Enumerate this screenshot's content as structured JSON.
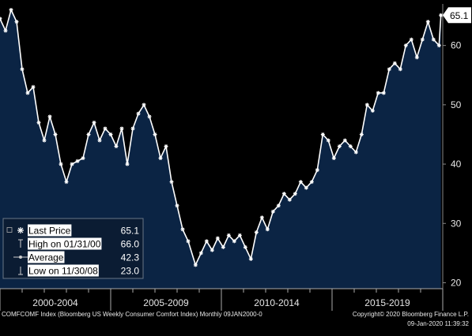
{
  "chart_data": {
    "type": "area",
    "y_axis": {
      "ticks": [
        20,
        30,
        40,
        50,
        60
      ],
      "range": [
        19,
        67
      ],
      "side": "right"
    },
    "x_axis": {
      "period_labels": [
        "2000-2004",
        "2005-2009",
        "2010-2014",
        "2015-2019"
      ],
      "range": [
        "2000-01",
        "2020-01"
      ]
    },
    "grid": false,
    "last_value_label": "65.1",
    "series": [
      {
        "values": [
          {
            "x": "2000-01",
            "y": 64.5
          },
          {
            "x": "2000-04",
            "y": 62.5
          },
          {
            "x": "2000-07",
            "y": 66.0
          },
          {
            "x": "2000-10",
            "y": 64.0
          },
          {
            "x": "2001-01",
            "y": 56.0
          },
          {
            "x": "2001-04",
            "y": 52.0
          },
          {
            "x": "2001-07",
            "y": 53.0
          },
          {
            "x": "2001-10",
            "y": 47.0
          },
          {
            "x": "2002-01",
            "y": 44.0
          },
          {
            "x": "2002-04",
            "y": 48.0
          },
          {
            "x": "2002-07",
            "y": 45.0
          },
          {
            "x": "2002-10",
            "y": 40.0
          },
          {
            "x": "2003-01",
            "y": 37.0
          },
          {
            "x": "2003-04",
            "y": 40.0
          },
          {
            "x": "2003-07",
            "y": 40.5
          },
          {
            "x": "2003-10",
            "y": 41.0
          },
          {
            "x": "2004-01",
            "y": 45.0
          },
          {
            "x": "2004-04",
            "y": 47.0
          },
          {
            "x": "2004-07",
            "y": 44.0
          },
          {
            "x": "2004-10",
            "y": 46.0
          },
          {
            "x": "2005-01",
            "y": 45.0
          },
          {
            "x": "2005-04",
            "y": 43.0
          },
          {
            "x": "2005-07",
            "y": 46.0
          },
          {
            "x": "2005-10",
            "y": 40.0
          },
          {
            "x": "2006-01",
            "y": 46.0
          },
          {
            "x": "2006-04",
            "y": 48.5
          },
          {
            "x": "2006-07",
            "y": 50.0
          },
          {
            "x": "2006-10",
            "y": 48.0
          },
          {
            "x": "2007-01",
            "y": 45.0
          },
          {
            "x": "2007-04",
            "y": 41.0
          },
          {
            "x": "2007-07",
            "y": 43.0
          },
          {
            "x": "2007-10",
            "y": 37.0
          },
          {
            "x": "2008-01",
            "y": 33.0
          },
          {
            "x": "2008-04",
            "y": 29.0
          },
          {
            "x": "2008-07",
            "y": 27.0
          },
          {
            "x": "2008-11",
            "y": 23.0
          },
          {
            "x": "2009-02",
            "y": 25.0
          },
          {
            "x": "2009-05",
            "y": 27.0
          },
          {
            "x": "2009-08",
            "y": 25.5
          },
          {
            "x": "2009-11",
            "y": 27.5
          },
          {
            "x": "2010-02",
            "y": 26.0
          },
          {
            "x": "2010-05",
            "y": 28.0
          },
          {
            "x": "2010-08",
            "y": 27.0
          },
          {
            "x": "2010-11",
            "y": 28.0
          },
          {
            "x": "2011-02",
            "y": 26.0
          },
          {
            "x": "2011-05",
            "y": 24.0
          },
          {
            "x": "2011-08",
            "y": 28.5
          },
          {
            "x": "2011-11",
            "y": 31.0
          },
          {
            "x": "2012-02",
            "y": 29.0
          },
          {
            "x": "2012-05",
            "y": 32.0
          },
          {
            "x": "2012-08",
            "y": 33.0
          },
          {
            "x": "2012-11",
            "y": 35.0
          },
          {
            "x": "2013-02",
            "y": 34.0
          },
          {
            "x": "2013-05",
            "y": 35.0
          },
          {
            "x": "2013-08",
            "y": 37.0
          },
          {
            "x": "2013-11",
            "y": 36.0
          },
          {
            "x": "2014-02",
            "y": 37.0
          },
          {
            "x": "2014-05",
            "y": 39.0
          },
          {
            "x": "2014-08",
            "y": 45.0
          },
          {
            "x": "2014-11",
            "y": 44.0
          },
          {
            "x": "2015-02",
            "y": 41.0
          },
          {
            "x": "2015-05",
            "y": 43.0
          },
          {
            "x": "2015-08",
            "y": 44.0
          },
          {
            "x": "2015-11",
            "y": 43.0
          },
          {
            "x": "2016-02",
            "y": 42.0
          },
          {
            "x": "2016-05",
            "y": 45.0
          },
          {
            "x": "2016-08",
            "y": 50.0
          },
          {
            "x": "2016-11",
            "y": 49.0
          },
          {
            "x": "2017-02",
            "y": 52.0
          },
          {
            "x": "2017-05",
            "y": 52.0
          },
          {
            "x": "2017-08",
            "y": 56.0
          },
          {
            "x": "2017-11",
            "y": 57.0
          },
          {
            "x": "2018-02",
            "y": 56.0
          },
          {
            "x": "2018-05",
            "y": 60.0
          },
          {
            "x": "2018-08",
            "y": 61.0
          },
          {
            "x": "2018-11",
            "y": 58.0
          },
          {
            "x": "2019-02",
            "y": 61.0
          },
          {
            "x": "2019-05",
            "y": 64.0
          },
          {
            "x": "2019-08",
            "y": 61.0
          },
          {
            "x": "2019-11",
            "y": 60.0
          },
          {
            "x": "2019-12",
            "y": 65.1
          }
        ]
      }
    ],
    "colors": {
      "background": "#000000",
      "area_fill": "#0b2444",
      "line": "#ffffff",
      "tag_bg": "#ffffff",
      "tag_text": "#000000",
      "axis_text": "#e6e6e6",
      "legend_bg": "#0b1c33",
      "legend_highlight": "#ffffff"
    }
  },
  "legend": [
    {
      "label": "Last Price",
      "value": "65.1",
      "symbol": "star-icon",
      "highlight": true
    },
    {
      "label": "High on 01/31/00",
      "value": "66.0",
      "symbol": "high-marker-icon",
      "highlight": true
    },
    {
      "label": "Average",
      "value": "42.3",
      "symbol": "average-marker-icon",
      "highlight": true
    },
    {
      "label": "Low on 11/30/08",
      "value": "23.0",
      "symbol": "low-marker-icon",
      "highlight": true
    }
  ],
  "footer": {
    "left": "COMFCOMF Index (Bloomberg US Weekly Consumer Comfort Index)  Monthly 09JAN2000-0",
    "right_line1": "Copyright© 2020 Bloomberg Finance L.P.",
    "right_line2": "09-Jan-2020 11:39:32"
  }
}
